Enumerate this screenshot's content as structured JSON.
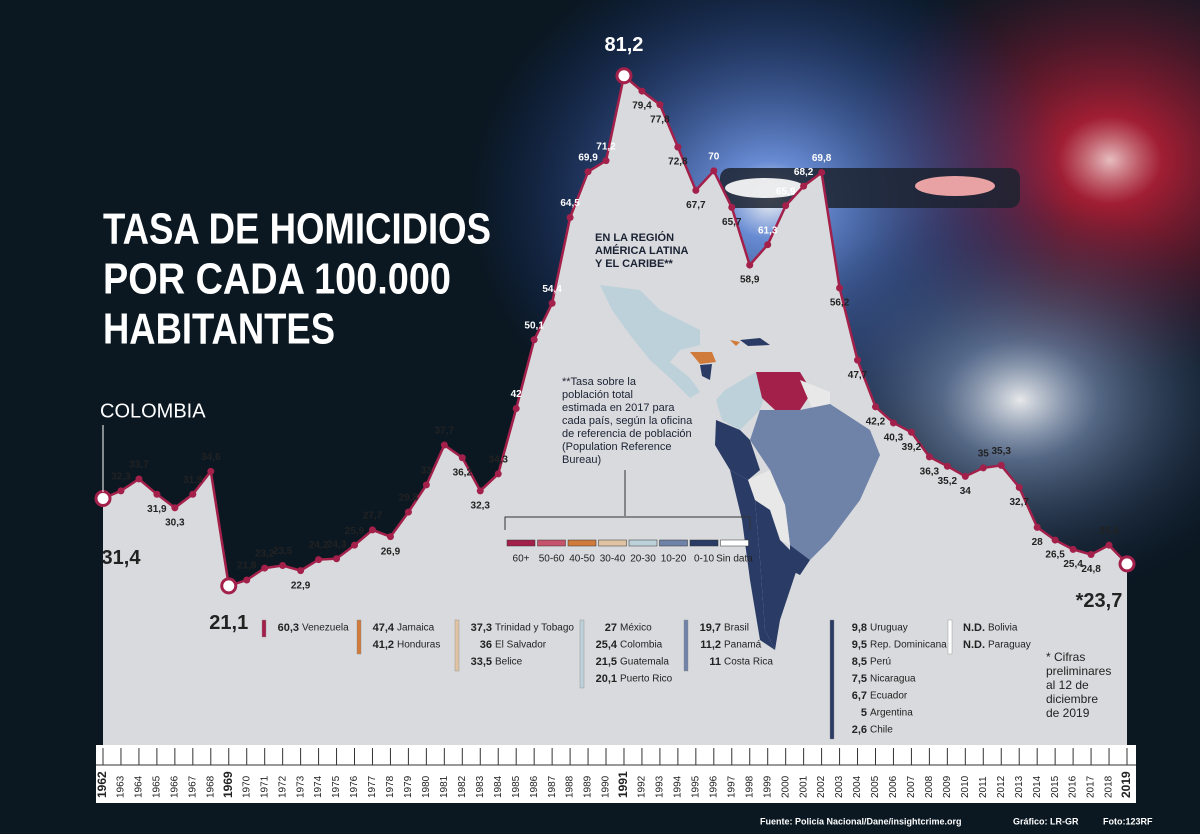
{
  "chart_data": {
    "type": "area",
    "title": [
      "TASA DE HOMICIDIOS",
      "POR CADA 100.000",
      "HABITANTES"
    ],
    "label": "COLOMBIA",
    "categories": [
      "1962",
      "1963",
      "1964",
      "1965",
      "1966",
      "1967",
      "1968",
      "1969",
      "1970",
      "1971",
      "1972",
      "1973",
      "1974",
      "1975",
      "1976",
      "1977",
      "1978",
      "1979",
      "1980",
      "1981",
      "1982",
      "1983",
      "1984",
      "1985",
      "1986",
      "1987",
      "1988",
      "1989",
      "1990",
      "1991",
      "1992",
      "1993",
      "1994",
      "1995",
      "1996",
      "1997",
      "1998",
      "1999",
      "2000",
      "2001",
      "2002",
      "2003",
      "2004",
      "2005",
      "2006",
      "2007",
      "2008",
      "2009",
      "2010",
      "2011",
      "2012",
      "2013",
      "2014",
      "2015",
      "2016",
      "2017",
      "2018",
      "2019"
    ],
    "values": [
      31.4,
      32.3,
      33.7,
      31.9,
      30.3,
      31.9,
      34.6,
      21.1,
      21.8,
      23.2,
      23.5,
      22.9,
      24.2,
      24.3,
      25.9,
      27.7,
      26.9,
      29.8,
      33,
      37.7,
      36.2,
      32.3,
      34.3,
      42,
      50.1,
      54.4,
      64.5,
      69.9,
      71.2,
      81.2,
      79.4,
      77.8,
      72.8,
      67.7,
      70,
      65.7,
      58.9,
      61.3,
      65.9,
      68.2,
      69.8,
      56.2,
      47.7,
      42.2,
      40.3,
      39.2,
      36.3,
      35.2,
      34,
      35,
      35.3,
      32.7,
      28,
      26.5,
      25.4,
      24.8,
      25.9,
      23.7
    ],
    "value_labels": [
      "31,4",
      "32,3",
      "33,7",
      "31,9",
      "30,3",
      "31,9",
      "34,6",
      "21,1",
      "21,8",
      "23,2",
      "23,5",
      "22,9",
      "24,2",
      "24,3",
      "25,9",
      "27,7",
      "26,9",
      "29,8",
      "33",
      "37,7",
      "36,2",
      "32,3",
      "34,3",
      "42",
      "50,1",
      "54,4",
      "64,5",
      "69,9",
      "71,2",
      "81,2",
      "79,4",
      "77,8",
      "72,8",
      "67,7",
      "70",
      "65,7",
      "58,9",
      "61,3",
      "65,9",
      "68,2",
      "69,8",
      "56,2",
      "47,7",
      "42,2",
      "40,3",
      "39,2",
      "36,3",
      "35,2",
      "34",
      "35",
      "35,3",
      "32,7",
      "28",
      "26,5",
      "25,4",
      "24,8",
      "25,9",
      "*23,7"
    ],
    "highlighted_points": [
      0,
      7,
      29,
      57
    ],
    "color": "#a3204a",
    "area_color": "#d9dadd",
    "ylim": [
      0,
      82
    ]
  },
  "region_note": [
    "EN LA REGIÓN",
    "AMÉRICA LATINA",
    "Y EL CARIBE**"
  ],
  "footnote": [
    "**Tasa sobre la",
    "población total",
    "estimada en 2017 para",
    "cada país, según la oficina",
    "de referencia de población",
    "(Population Reference",
    "Bureau)"
  ],
  "map_legend": [
    {
      "label": "60+",
      "color": "#a3204a"
    },
    {
      "label": "50-60",
      "color": "#c6536b"
    },
    {
      "label": "40-50",
      "color": "#d07a3c"
    },
    {
      "label": "30-40",
      "color": "#e0c3a2"
    },
    {
      "label": "20-30",
      "color": "#bcd1d9"
    },
    {
      "label": "10-20",
      "color": "#6f82a8"
    },
    {
      "label": "0-10",
      "color": "#2a3c66"
    },
    {
      "label": "Sin data",
      "color": "#ffffff"
    }
  ],
  "ranking": [
    {
      "color": "#a3204a",
      "items": [
        [
          "60,3",
          "Venezuela"
        ]
      ]
    },
    {
      "color": "#d07a3c",
      "items": [
        [
          "47,4",
          "Jamaica"
        ],
        [
          "41,2",
          "Honduras"
        ]
      ]
    },
    {
      "color": "#e0c3a2",
      "items": [
        [
          "37,3",
          "Trinidad y Tobago"
        ],
        [
          "36",
          "El Salvador"
        ],
        [
          "33,5",
          "Belice"
        ]
      ]
    },
    {
      "color": "#bcd1d9",
      "items": [
        [
          "27",
          "México"
        ],
        [
          "25,4",
          "Colombia"
        ],
        [
          "21,5",
          "Guatemala"
        ],
        [
          "20,1",
          "Puerto Rico"
        ]
      ]
    },
    {
      "color": "#6f82a8",
      "items": [
        [
          "19,7",
          "Brasil"
        ],
        [
          "11,2",
          "Panamá"
        ],
        [
          "11",
          "Costa Rica"
        ]
      ]
    },
    {
      "color": "#2a3c66",
      "items": [
        [
          "9,8",
          "Uruguay"
        ],
        [
          "9,5",
          "Rep. Dominicana"
        ],
        [
          "8,5",
          "Perú"
        ],
        [
          "7,5",
          "Nicaragua"
        ],
        [
          "6,7",
          "Ecuador"
        ],
        [
          "5",
          "Argentina"
        ],
        [
          "2,6",
          "Chile"
        ]
      ]
    },
    {
      "color": "#ffffff",
      "items": [
        [
          "N.D.",
          "Bolivia"
        ],
        [
          "N.D.",
          "Paraguay"
        ]
      ]
    }
  ],
  "note": [
    "* Cifras",
    "preliminares",
    "al 12 de",
    "diciembre",
    "de 2019"
  ],
  "source": "Fuente: Policía Nacional/Dane/insightcrime.org",
  "graphic": "Gráfico: LR-GR",
  "photo": "Foto:123RF"
}
